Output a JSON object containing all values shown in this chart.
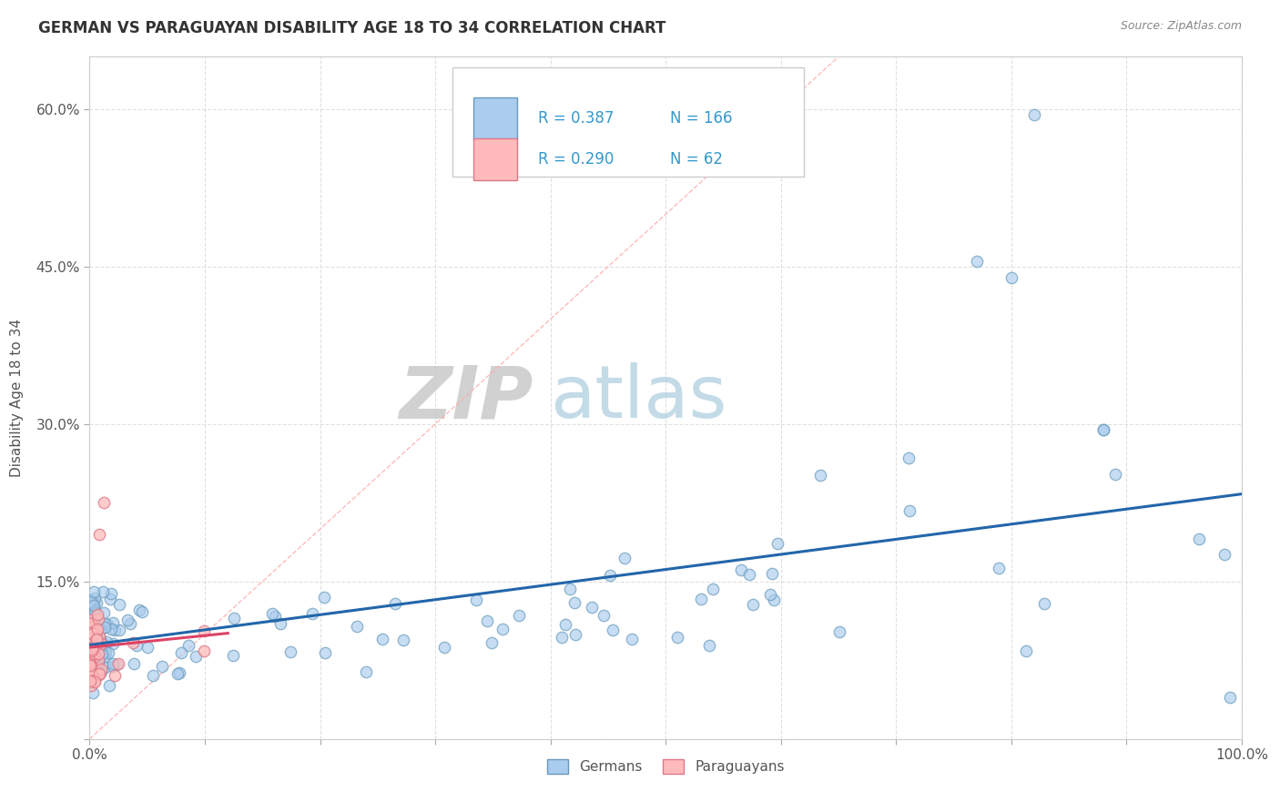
{
  "title": "GERMAN VS PARAGUAYAN DISABILITY AGE 18 TO 34 CORRELATION CHART",
  "source_text": "Source: ZipAtlas.com",
  "ylabel": "Disability Age 18 to 34",
  "xlim": [
    0,
    1.0
  ],
  "ylim": [
    0,
    0.65
  ],
  "xtick_positions": [
    0.0,
    0.1,
    0.2,
    0.3,
    0.4,
    0.5,
    0.6,
    0.7,
    0.8,
    0.9,
    1.0
  ],
  "xticklabels": [
    "0.0%",
    "",
    "",
    "",
    "",
    "",
    "",
    "",
    "",
    "",
    "100.0%"
  ],
  "ytick_positions": [
    0.0,
    0.15,
    0.3,
    0.45,
    0.6
  ],
  "yticklabels": [
    "",
    "15.0%",
    "30.0%",
    "45.0%",
    "60.0%"
  ],
  "background_color": "#ffffff",
  "grid_color": "#dddddd",
  "diagonal_color": "#ffaaaa",
  "german_face_color": "#aaccee",
  "german_edge_color": "#6699bb",
  "paraguayan_face_color": "#ffbbbb",
  "paraguayan_edge_color": "#dd7788",
  "german_line_color": "#2266aa",
  "paraguayan_line_color": "#dd4466",
  "legend_R_german": "0.387",
  "legend_N_german": "166",
  "legend_R_paraguayan": "0.290",
  "legend_N_paraguayan": "62",
  "legend_text_color": "#3399cc",
  "watermark_zip_color": "#cccccc",
  "watermark_atlas_color": "#aaccdd",
  "title_color": "#333333",
  "label_color": "#555555",
  "source_color": "#888888"
}
